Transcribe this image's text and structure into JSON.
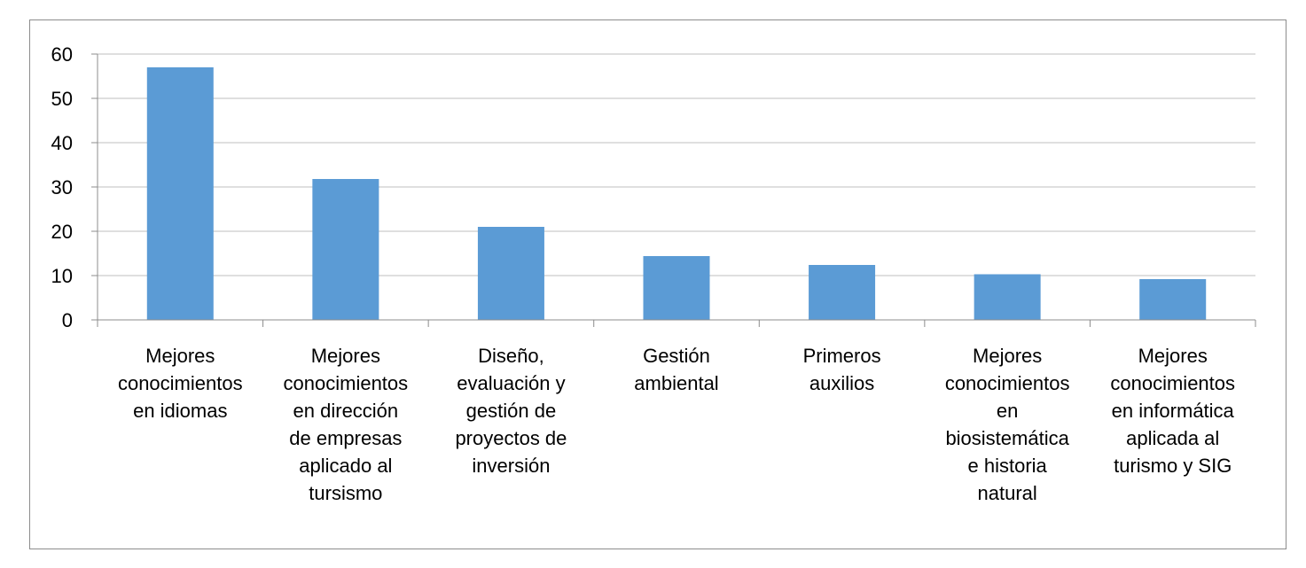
{
  "chart_data": {
    "type": "bar",
    "title": "",
    "xlabel": "",
    "ylabel": "",
    "ylim": [
      0,
      60
    ],
    "yticks": [
      0,
      10,
      20,
      30,
      40,
      50,
      60
    ],
    "grid": true,
    "bar_color": "#5b9bd5",
    "categories": [
      [
        "Mejores",
        "conocimientos",
        "en idiomas"
      ],
      [
        "Mejores",
        "conocimientos",
        "en dirección",
        "de empresas",
        "aplicado al",
        "tursismo"
      ],
      [
        "Diseño,",
        "evaluación y",
        "gestión de",
        "proyectos de",
        "inversión"
      ],
      [
        "Gestión",
        "ambiental"
      ],
      [
        "Primeros",
        "auxilios"
      ],
      [
        "Mejores",
        "conocimientos",
        "en",
        "biosistemática",
        "e historia",
        "natural"
      ],
      [
        "Mejores",
        "conocimientos",
        "en informática",
        "aplicada al",
        "turismo y SIG"
      ]
    ],
    "values": [
      57,
      31.8,
      21,
      14.4,
      12.4,
      10.3,
      9.2
    ]
  }
}
